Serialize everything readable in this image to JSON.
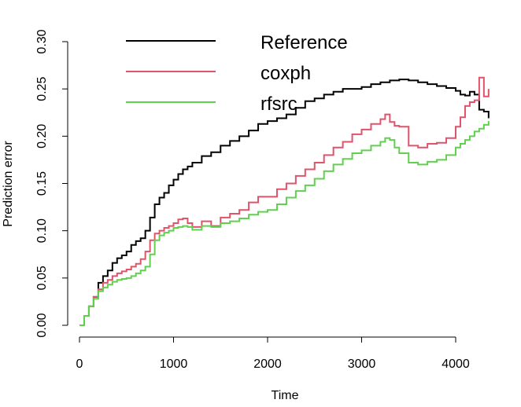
{
  "chart_data": {
    "type": "line",
    "title": "",
    "xlabel": "Time",
    "ylabel": "Prediction error",
    "xlim": [
      0,
      4400
    ],
    "ylim": [
      0,
      0.3
    ],
    "x_ticks": [
      0,
      1000,
      2000,
      3000,
      4000
    ],
    "x_tick_labels": [
      "0",
      "1000",
      "2000",
      "3000",
      "4000"
    ],
    "y_ticks": [
      0,
      0.05,
      0.1,
      0.15,
      0.2,
      0.25,
      0.3
    ],
    "y_tick_labels": [
      "0.00",
      "0.05",
      "0.10",
      "0.15",
      "0.20",
      "0.25",
      "0.30"
    ],
    "grid": false,
    "step": true,
    "legend": {
      "position": "top-left",
      "boxed": false
    },
    "series": [
      {
        "name": "Reference",
        "color": "#000000",
        "x": [
          0,
          50,
          100,
          150,
          200,
          250,
          300,
          350,
          400,
          450,
          500,
          550,
          600,
          650,
          700,
          750,
          800,
          850,
          900,
          950,
          1000,
          1050,
          1100,
          1150,
          1200,
          1300,
          1400,
          1500,
          1600,
          1700,
          1800,
          1900,
          2000,
          2100,
          2200,
          2300,
          2400,
          2500,
          2600,
          2700,
          2800,
          2900,
          3000,
          3100,
          3200,
          3300,
          3400,
          3500,
          3600,
          3700,
          3800,
          3900,
          4000,
          4050,
          4100,
          4150,
          4200,
          4250,
          4300,
          4350
        ],
        "y": [
          0.0,
          0.01,
          0.02,
          0.03,
          0.045,
          0.052,
          0.058,
          0.066,
          0.071,
          0.074,
          0.078,
          0.085,
          0.089,
          0.092,
          0.1,
          0.114,
          0.128,
          0.135,
          0.14,
          0.148,
          0.154,
          0.16,
          0.165,
          0.168,
          0.172,
          0.179,
          0.183,
          0.19,
          0.195,
          0.2,
          0.206,
          0.213,
          0.216,
          0.219,
          0.223,
          0.23,
          0.237,
          0.24,
          0.244,
          0.247,
          0.25,
          0.25,
          0.252,
          0.255,
          0.257,
          0.259,
          0.26,
          0.259,
          0.257,
          0.255,
          0.253,
          0.251,
          0.248,
          0.244,
          0.243,
          0.247,
          0.244,
          0.228,
          0.226,
          0.219
        ]
      },
      {
        "name": "coxph",
        "color": "#DF536B",
        "x": [
          0,
          50,
          100,
          150,
          200,
          250,
          300,
          350,
          400,
          450,
          500,
          550,
          600,
          650,
          700,
          750,
          800,
          850,
          900,
          950,
          1000,
          1050,
          1100,
          1150,
          1200,
          1300,
          1400,
          1500,
          1600,
          1700,
          1800,
          1900,
          2000,
          2100,
          2200,
          2300,
          2400,
          2500,
          2600,
          2700,
          2800,
          2900,
          3000,
          3100,
          3200,
          3250,
          3300,
          3350,
          3400,
          3500,
          3600,
          3700,
          3800,
          3900,
          4000,
          4050,
          4100,
          4150,
          4200,
          4250,
          4300,
          4350
        ],
        "y": [
          0.0,
          0.01,
          0.02,
          0.03,
          0.038,
          0.045,
          0.048,
          0.052,
          0.055,
          0.057,
          0.059,
          0.062,
          0.065,
          0.07,
          0.078,
          0.09,
          0.097,
          0.1,
          0.103,
          0.105,
          0.108,
          0.112,
          0.113,
          0.108,
          0.104,
          0.11,
          0.105,
          0.114,
          0.118,
          0.122,
          0.13,
          0.136,
          0.136,
          0.144,
          0.15,
          0.158,
          0.165,
          0.172,
          0.18,
          0.188,
          0.194,
          0.202,
          0.207,
          0.213,
          0.218,
          0.223,
          0.215,
          0.211,
          0.21,
          0.19,
          0.188,
          0.192,
          0.193,
          0.198,
          0.21,
          0.22,
          0.232,
          0.236,
          0.238,
          0.262,
          0.242,
          0.25
        ]
      },
      {
        "name": "rfsrc",
        "color": "#61D04F",
        "x": [
          0,
          50,
          100,
          150,
          200,
          250,
          300,
          350,
          400,
          450,
          500,
          550,
          600,
          650,
          700,
          750,
          800,
          850,
          900,
          950,
          1000,
          1050,
          1100,
          1150,
          1200,
          1300,
          1400,
          1500,
          1600,
          1700,
          1800,
          1900,
          2000,
          2100,
          2200,
          2300,
          2400,
          2500,
          2600,
          2700,
          2800,
          2900,
          3000,
          3100,
          3200,
          3250,
          3300,
          3350,
          3400,
          3500,
          3600,
          3700,
          3800,
          3900,
          4000,
          4050,
          4100,
          4150,
          4200,
          4250,
          4300,
          4350
        ],
        "y": [
          0.0,
          0.01,
          0.02,
          0.028,
          0.036,
          0.04,
          0.043,
          0.046,
          0.048,
          0.049,
          0.05,
          0.052,
          0.055,
          0.058,
          0.062,
          0.075,
          0.09,
          0.095,
          0.098,
          0.1,
          0.103,
          0.104,
          0.105,
          0.104,
          0.101,
          0.105,
          0.104,
          0.108,
          0.11,
          0.113,
          0.117,
          0.12,
          0.122,
          0.128,
          0.135,
          0.142,
          0.148,
          0.155,
          0.163,
          0.17,
          0.176,
          0.182,
          0.185,
          0.19,
          0.194,
          0.198,
          0.196,
          0.188,
          0.182,
          0.172,
          0.17,
          0.173,
          0.175,
          0.18,
          0.188,
          0.192,
          0.196,
          0.2,
          0.205,
          0.208,
          0.212,
          0.216
        ]
      }
    ]
  }
}
